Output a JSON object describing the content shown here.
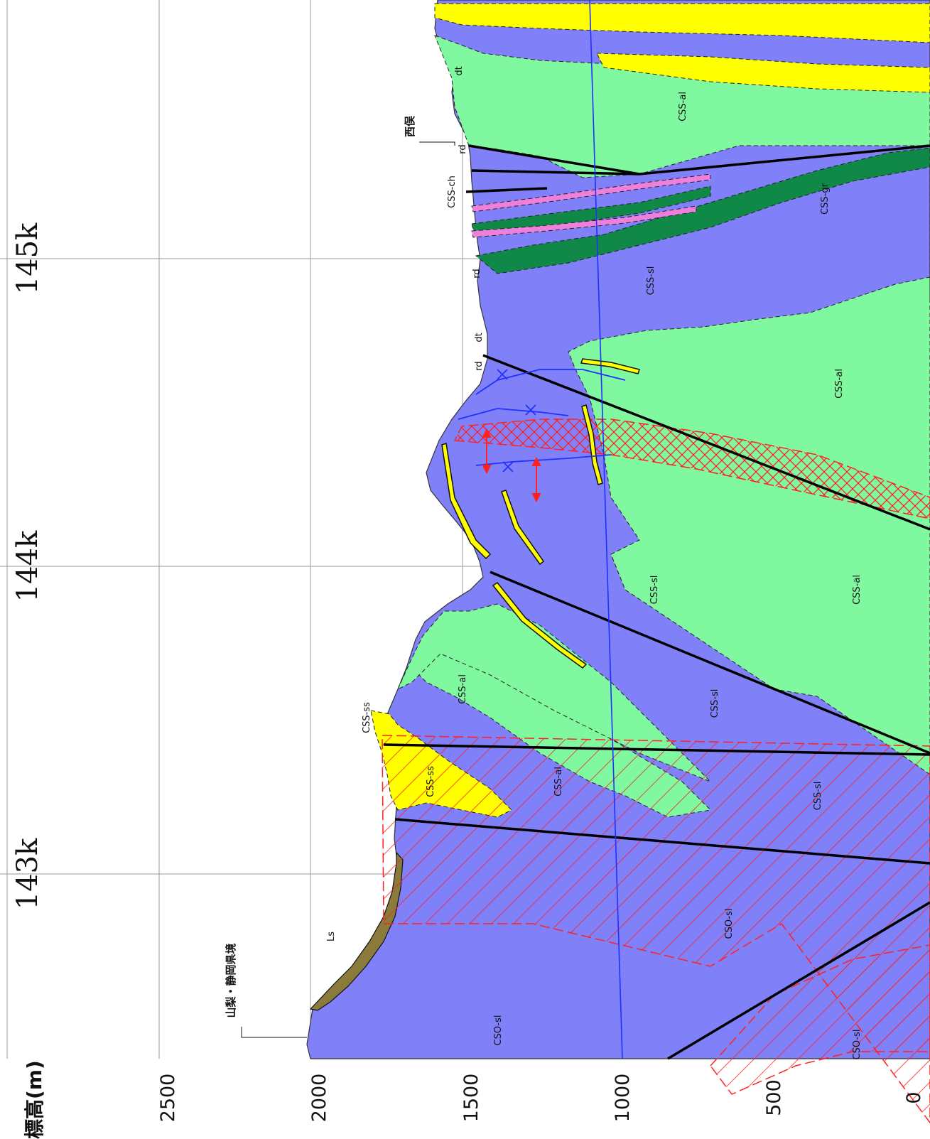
{
  "axis": {
    "title": "標高(m)",
    "ticks": [
      "2500",
      "2000",
      "1500",
      "1000",
      "500",
      "0"
    ]
  },
  "stations": [
    "143k",
    "144k",
    "145k"
  ],
  "places": {
    "boundary": "山梨・静岡県境",
    "nishimata": "西俣"
  },
  "units": {
    "cso_sl_top": "CSO-sl",
    "cso_sl_mid": "CSO-sl",
    "cso_sl_bottom": "CSO-sl",
    "css_ss_label": "CSS-ss",
    "css_ss_inner": "CSS-ss",
    "css_al_a": "CSS-al",
    "css_al_b": "CSS-al",
    "css_al_c": "CSS-al",
    "css_al_d": "CSS-al",
    "css_al_e": "CSS-al",
    "css_sl_a": "CSS-sl",
    "css_sl_b": "CSS-sl",
    "css_sl_c": "CSS-sl",
    "css_sl_d": "CSS-sl",
    "css_ch": "CSS-ch",
    "css_gr": "CSS-gr",
    "ls": "Ls",
    "rd_a": "rd",
    "rd_b": "rd",
    "rd_c": "rd",
    "dt_a": "dt",
    "dt_b": "dt"
  },
  "colors": {
    "slate": "#8080f8",
    "sandstone": "#ffff00",
    "greenstone": "#80f8a0",
    "greenrock": "#108848",
    "chert": "#ee80dd",
    "landslide": "#8a7a3c",
    "fault": "#000000",
    "fracture": "#ff2020",
    "tunnel": "#2030ff"
  }
}
